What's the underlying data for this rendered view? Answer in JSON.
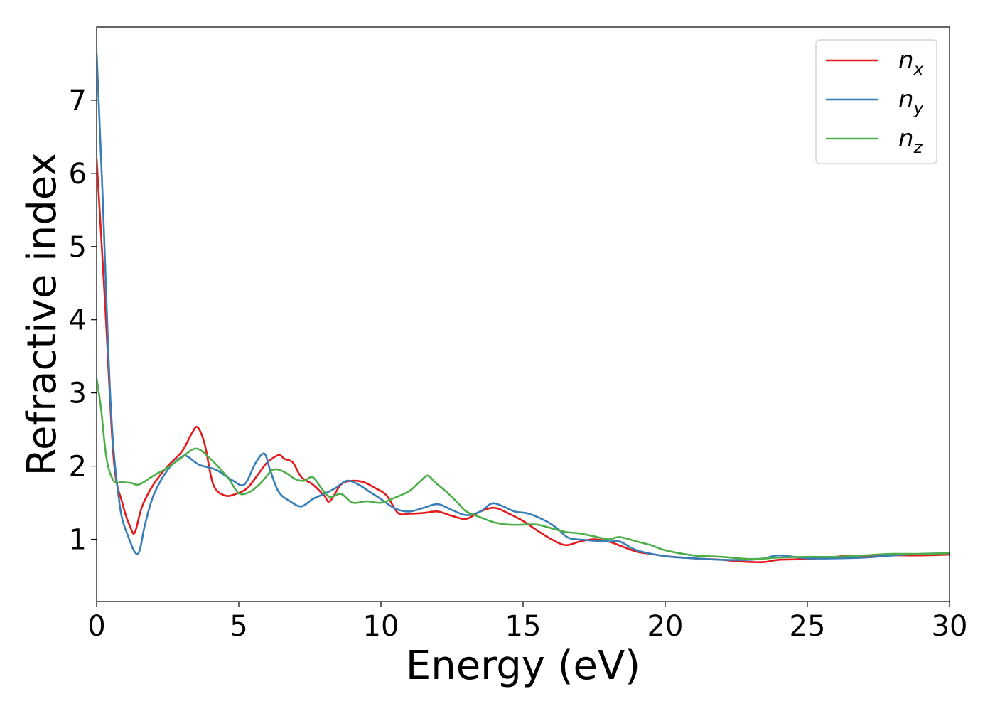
{
  "chart_data": {
    "type": "line",
    "xlabel": "Energy (eV)",
    "ylabel": "Refractive index",
    "xlim": [
      0,
      30
    ],
    "ylim": [
      0.15,
      8.0
    ],
    "xticks": [
      0,
      5,
      10,
      15,
      20,
      25,
      30
    ],
    "yticks": [
      1,
      2,
      3,
      4,
      5,
      6,
      7
    ],
    "grid": false,
    "legend_position": "top-right",
    "series": [
      {
        "name": "n",
        "subscript": "x",
        "color": "#e41a1c",
        "x": [
          0,
          0.3,
          0.6,
          0.9,
          1.2,
          1.35,
          1.6,
          2.0,
          2.5,
          3.0,
          3.35,
          3.55,
          3.8,
          4.1,
          4.5,
          4.9,
          5.3,
          5.7,
          6.0,
          6.4,
          6.6,
          6.9,
          7.2,
          7.6,
          8.0,
          8.2,
          8.6,
          9.0,
          9.4,
          9.8,
          10.2,
          10.6,
          11.0,
          11.5,
          12.0,
          12.5,
          13.0,
          13.5,
          14.0,
          14.5,
          15.0,
          15.5,
          16.0,
          16.5,
          17.0,
          17.5,
          18.0,
          18.5,
          19.0,
          19.5,
          20.0,
          21.0,
          22.0,
          22.5,
          23.0,
          23.5,
          24.0,
          25.0,
          26.0,
          26.5,
          27.0,
          28.0,
          29.0,
          30.0
        ],
        "y": [
          6.2,
          4.2,
          2.1,
          1.5,
          1.15,
          1.1,
          1.45,
          1.75,
          2.0,
          2.2,
          2.45,
          2.53,
          2.3,
          1.75,
          1.6,
          1.62,
          1.7,
          1.9,
          2.05,
          2.15,
          2.1,
          2.05,
          1.85,
          1.75,
          1.6,
          1.52,
          1.75,
          1.8,
          1.78,
          1.7,
          1.6,
          1.36,
          1.35,
          1.36,
          1.38,
          1.32,
          1.28,
          1.38,
          1.43,
          1.35,
          1.25,
          1.12,
          1.0,
          0.92,
          0.97,
          1.0,
          0.97,
          0.9,
          0.83,
          0.8,
          0.77,
          0.74,
          0.72,
          0.7,
          0.69,
          0.69,
          0.72,
          0.73,
          0.76,
          0.78,
          0.77,
          0.78,
          0.78,
          0.79
        ]
      },
      {
        "name": "n",
        "subscript": "y",
        "color": "#377eb8",
        "x": [
          0,
          0.2,
          0.5,
          0.8,
          1.1,
          1.45,
          1.7,
          2.0,
          2.5,
          3.0,
          3.2,
          3.6,
          4.2,
          4.8,
          5.2,
          5.6,
          5.9,
          6.1,
          6.4,
          6.8,
          7.2,
          7.6,
          8.0,
          8.4,
          8.8,
          9.2,
          9.6,
          10.0,
          10.5,
          11.0,
          11.5,
          12.0,
          12.5,
          13.0,
          13.5,
          13.9,
          14.3,
          14.7,
          15.2,
          15.8,
          16.2,
          16.6,
          17.2,
          18.0,
          18.4,
          19.0,
          20.0,
          21.0,
          22.0,
          23.0,
          23.5,
          24.0,
          25.0,
          26.0,
          27.0,
          28.0,
          29.0,
          30.0
        ],
        "y": [
          7.65,
          5.8,
          2.8,
          1.5,
          1.05,
          0.8,
          1.2,
          1.6,
          1.95,
          2.13,
          2.13,
          2.02,
          1.95,
          1.8,
          1.75,
          2.05,
          2.17,
          1.95,
          1.65,
          1.52,
          1.45,
          1.55,
          1.62,
          1.7,
          1.8,
          1.75,
          1.65,
          1.55,
          1.42,
          1.38,
          1.43,
          1.48,
          1.4,
          1.33,
          1.38,
          1.49,
          1.45,
          1.38,
          1.35,
          1.25,
          1.15,
          1.02,
          0.99,
          0.97,
          0.97,
          0.85,
          0.77,
          0.74,
          0.72,
          0.72,
          0.74,
          0.78,
          0.74,
          0.74,
          0.75,
          0.78,
          0.8,
          0.81
        ]
      },
      {
        "name": "n",
        "subscript": "z",
        "color": "#4daf4a",
        "x": [
          0,
          0.15,
          0.35,
          0.6,
          0.9,
          1.2,
          1.5,
          2.0,
          2.5,
          3.0,
          3.5,
          4.0,
          4.6,
          5.0,
          5.4,
          5.8,
          6.2,
          6.6,
          7.0,
          7.3,
          7.6,
          7.9,
          8.2,
          8.6,
          9.0,
          9.5,
          10.0,
          10.5,
          11.0,
          11.4,
          11.65,
          11.9,
          12.3,
          12.7,
          13.0,
          13.5,
          14.0,
          14.5,
          15.0,
          15.5,
          16.0,
          16.5,
          17.0,
          17.5,
          18.0,
          18.4,
          19.0,
          19.5,
          20.0,
          21.0,
          22.0,
          23.0,
          24.0,
          25.0,
          26.0,
          27.0,
          28.0,
          29.0,
          30.0
        ],
        "y": [
          3.2,
          2.8,
          2.1,
          1.8,
          1.78,
          1.77,
          1.75,
          1.87,
          1.98,
          2.12,
          2.24,
          2.1,
          1.85,
          1.63,
          1.65,
          1.78,
          1.95,
          1.92,
          1.82,
          1.8,
          1.85,
          1.7,
          1.58,
          1.62,
          1.5,
          1.52,
          1.5,
          1.57,
          1.66,
          1.8,
          1.87,
          1.78,
          1.65,
          1.5,
          1.38,
          1.3,
          1.23,
          1.2,
          1.2,
          1.2,
          1.15,
          1.1,
          1.08,
          1.04,
          1.0,
          1.03,
          0.97,
          0.92,
          0.85,
          0.78,
          0.76,
          0.73,
          0.75,
          0.76,
          0.76,
          0.78,
          0.8,
          0.8,
          0.81
        ]
      }
    ]
  }
}
